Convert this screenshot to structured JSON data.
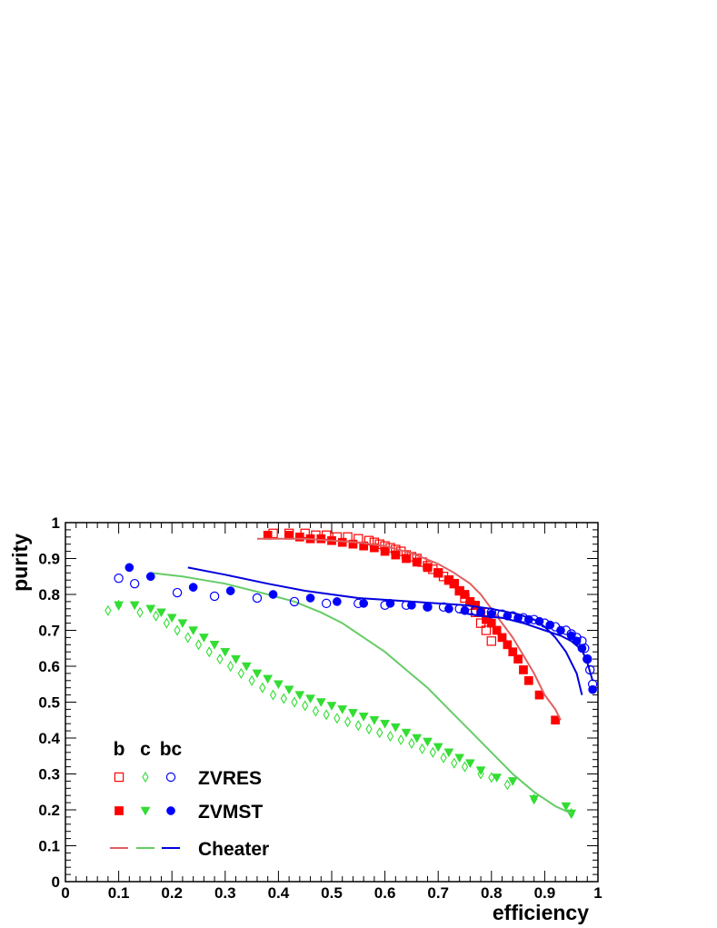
{
  "chart_data": {
    "type": "scatter",
    "xlabel": "efficiency",
    "ylabel": "purity",
    "xlim": [
      0,
      1
    ],
    "ylim": [
      0,
      1
    ],
    "x_ticks": [
      "0",
      "0.1",
      "0.2",
      "0.3",
      "0.4",
      "0.5",
      "0.6",
      "0.7",
      "0.8",
      "0.9",
      "1"
    ],
    "y_ticks": [
      "0",
      "0.1",
      "0.2",
      "0.3",
      "0.4",
      "0.5",
      "0.6",
      "0.7",
      "0.8",
      "0.9",
      "1"
    ],
    "grid": false,
    "legend": {
      "placement": "bottom-left",
      "column_headers": [
        "b",
        "c",
        "bc"
      ],
      "rows": [
        {
          "label": "ZVRES",
          "markers": [
            "open-square",
            "open-diamond",
            "open-circle"
          ]
        },
        {
          "label": "ZVMST",
          "markers": [
            "filled-square",
            "filled-triangle-down",
            "filled-circle"
          ]
        },
        {
          "label": "Cheater",
          "markers": [
            "line",
            "line",
            "line"
          ]
        }
      ]
    },
    "colors": {
      "b": "#ff0000",
      "c": "#33dd33",
      "bc": "#0000ff",
      "b_line": "#e06060",
      "c_line": "#66cc66",
      "bc_line": "#0000dd"
    },
    "series": [
      {
        "flavor": "b",
        "method": "ZVRES",
        "marker": "open-square",
        "color": "#ff0000",
        "x": [
          0.39,
          0.42,
          0.45,
          0.47,
          0.49,
          0.51,
          0.53,
          0.55,
          0.57,
          0.58,
          0.59,
          0.6,
          0.61,
          0.62,
          0.63,
          0.64,
          0.65,
          0.66,
          0.67,
          0.68,
          0.69,
          0.7,
          0.71,
          0.72,
          0.73,
          0.74,
          0.75,
          0.76,
          0.77,
          0.78,
          0.79,
          0.8
        ],
        "y": [
          0.97,
          0.97,
          0.97,
          0.965,
          0.965,
          0.96,
          0.96,
          0.955,
          0.95,
          0.945,
          0.94,
          0.935,
          0.93,
          0.925,
          0.92,
          0.91,
          0.905,
          0.9,
          0.89,
          0.88,
          0.87,
          0.86,
          0.85,
          0.84,
          0.83,
          0.81,
          0.79,
          0.77,
          0.75,
          0.72,
          0.7,
          0.67
        ]
      },
      {
        "flavor": "b",
        "method": "ZVMST",
        "marker": "filled-square",
        "color": "#ff0000",
        "x": [
          0.38,
          0.42,
          0.44,
          0.46,
          0.48,
          0.5,
          0.52,
          0.54,
          0.56,
          0.58,
          0.6,
          0.62,
          0.64,
          0.66,
          0.68,
          0.7,
          0.72,
          0.73,
          0.74,
          0.75,
          0.76,
          0.77,
          0.78,
          0.79,
          0.8,
          0.81,
          0.82,
          0.83,
          0.84,
          0.85,
          0.86,
          0.87,
          0.89,
          0.92
        ],
        "y": [
          0.965,
          0.965,
          0.96,
          0.955,
          0.955,
          0.95,
          0.945,
          0.94,
          0.935,
          0.93,
          0.92,
          0.91,
          0.9,
          0.89,
          0.875,
          0.86,
          0.84,
          0.83,
          0.81,
          0.8,
          0.78,
          0.77,
          0.75,
          0.73,
          0.72,
          0.7,
          0.68,
          0.66,
          0.64,
          0.62,
          0.59,
          0.56,
          0.52,
          0.45
        ]
      },
      {
        "flavor": "b",
        "method": "Cheater",
        "marker": "line",
        "color": "#e06060",
        "x": [
          0.36,
          0.45,
          0.55,
          0.6,
          0.65,
          0.7,
          0.73,
          0.76,
          0.78,
          0.8,
          0.82,
          0.84,
          0.86,
          0.88,
          0.9,
          0.92,
          0.93
        ],
        "y": [
          0.955,
          0.955,
          0.945,
          0.935,
          0.915,
          0.885,
          0.86,
          0.83,
          0.8,
          0.76,
          0.72,
          0.68,
          0.63,
          0.58,
          0.52,
          0.48,
          0.45
        ]
      },
      {
        "flavor": "c",
        "method": "ZVRES",
        "marker": "open-diamond",
        "color": "#33dd33",
        "x": [
          0.08,
          0.1,
          0.14,
          0.17,
          0.19,
          0.21,
          0.23,
          0.25,
          0.27,
          0.29,
          0.31,
          0.33,
          0.35,
          0.37,
          0.39,
          0.41,
          0.43,
          0.45,
          0.47,
          0.49,
          0.51,
          0.53,
          0.55,
          0.57,
          0.59,
          0.61,
          0.63,
          0.65,
          0.67,
          0.69,
          0.71,
          0.73,
          0.75,
          0.78,
          0.8,
          0.83,
          0.88,
          0.95
        ],
        "y": [
          0.755,
          0.77,
          0.75,
          0.74,
          0.72,
          0.7,
          0.68,
          0.66,
          0.64,
          0.62,
          0.6,
          0.58,
          0.56,
          0.54,
          0.52,
          0.51,
          0.5,
          0.49,
          0.475,
          0.465,
          0.455,
          0.445,
          0.435,
          0.425,
          0.415,
          0.405,
          0.395,
          0.385,
          0.37,
          0.36,
          0.345,
          0.33,
          0.32,
          0.3,
          0.29,
          0.27,
          0.23,
          0.19
        ]
      },
      {
        "flavor": "c",
        "method": "ZVMST",
        "marker": "filled-triangle-down",
        "color": "#33dd33",
        "x": [
          0.1,
          0.13,
          0.16,
          0.18,
          0.2,
          0.22,
          0.24,
          0.26,
          0.28,
          0.3,
          0.32,
          0.34,
          0.36,
          0.38,
          0.4,
          0.42,
          0.44,
          0.46,
          0.48,
          0.5,
          0.52,
          0.54,
          0.56,
          0.58,
          0.6,
          0.62,
          0.64,
          0.66,
          0.68,
          0.7,
          0.72,
          0.74,
          0.76,
          0.78,
          0.81,
          0.84,
          0.88,
          0.94,
          0.95
        ],
        "y": [
          0.77,
          0.77,
          0.76,
          0.75,
          0.735,
          0.72,
          0.7,
          0.68,
          0.66,
          0.64,
          0.62,
          0.6,
          0.58,
          0.565,
          0.55,
          0.535,
          0.52,
          0.51,
          0.5,
          0.49,
          0.48,
          0.47,
          0.46,
          0.45,
          0.44,
          0.43,
          0.415,
          0.4,
          0.39,
          0.375,
          0.36,
          0.345,
          0.33,
          0.31,
          0.29,
          0.28,
          0.23,
          0.21,
          0.19
        ]
      },
      {
        "flavor": "c",
        "method": "Cheater",
        "marker": "line",
        "color": "#66cc66",
        "x": [
          0.16,
          0.22,
          0.3,
          0.38,
          0.43,
          0.48,
          0.52,
          0.56,
          0.6,
          0.64,
          0.68,
          0.72,
          0.76,
          0.8,
          0.84,
          0.88,
          0.92,
          0.95
        ],
        "y": [
          0.86,
          0.85,
          0.83,
          0.8,
          0.78,
          0.75,
          0.72,
          0.68,
          0.64,
          0.59,
          0.54,
          0.48,
          0.42,
          0.36,
          0.3,
          0.25,
          0.21,
          0.19
        ]
      },
      {
        "flavor": "bc",
        "method": "ZVRES",
        "marker": "open-circle",
        "color": "#0000ff",
        "x": [
          0.1,
          0.13,
          0.21,
          0.28,
          0.36,
          0.43,
          0.49,
          0.55,
          0.6,
          0.64,
          0.68,
          0.71,
          0.74,
          0.77,
          0.8,
          0.82,
          0.84,
          0.86,
          0.88,
          0.9,
          0.92,
          0.94,
          0.95,
          0.96,
          0.97,
          0.975,
          0.98,
          0.985,
          0.99
        ],
        "y": [
          0.845,
          0.83,
          0.805,
          0.795,
          0.79,
          0.78,
          0.775,
          0.775,
          0.77,
          0.77,
          0.765,
          0.765,
          0.76,
          0.755,
          0.75,
          0.745,
          0.74,
          0.735,
          0.73,
          0.72,
          0.71,
          0.7,
          0.69,
          0.68,
          0.67,
          0.65,
          0.62,
          0.59,
          0.55
        ]
      },
      {
        "flavor": "bc",
        "method": "ZVMST",
        "marker": "filled-circle",
        "color": "#0000ff",
        "x": [
          0.12,
          0.16,
          0.24,
          0.31,
          0.39,
          0.46,
          0.51,
          0.56,
          0.61,
          0.65,
          0.68,
          0.72,
          0.75,
          0.78,
          0.8,
          0.83,
          0.85,
          0.87,
          0.89,
          0.91,
          0.93,
          0.95,
          0.96,
          0.97,
          0.98,
          0.99
        ],
        "y": [
          0.875,
          0.85,
          0.82,
          0.81,
          0.8,
          0.79,
          0.78,
          0.775,
          0.775,
          0.77,
          0.765,
          0.76,
          0.755,
          0.75,
          0.745,
          0.74,
          0.735,
          0.73,
          0.725,
          0.715,
          0.7,
          0.685,
          0.67,
          0.65,
          0.62,
          0.535
        ]
      },
      {
        "flavor": "bc",
        "method": "Cheater",
        "marker": "line",
        "color": "#0000dd",
        "x": [
          0.23,
          0.3,
          0.38,
          0.45,
          0.5,
          0.55,
          0.6,
          0.65,
          0.7,
          0.75,
          0.8,
          0.85,
          0.88,
          0.9,
          0.92,
          0.94,
          0.96,
          0.97
        ],
        "y": [
          0.875,
          0.855,
          0.83,
          0.81,
          0.8,
          0.79,
          0.785,
          0.78,
          0.775,
          0.77,
          0.76,
          0.745,
          0.73,
          0.71,
          0.68,
          0.64,
          0.58,
          0.52
        ]
      },
      {
        "flavor": "bc",
        "method": "Cheater",
        "marker": "line",
        "color": "#0000dd",
        "x": [
          0.74,
          0.78,
          0.82,
          0.86,
          0.9,
          0.93,
          0.95,
          0.97,
          0.98,
          0.99
        ],
        "y": [
          0.75,
          0.74,
          0.735,
          0.72,
          0.7,
          0.685,
          0.67,
          0.645,
          0.61,
          0.56
        ]
      }
    ]
  }
}
